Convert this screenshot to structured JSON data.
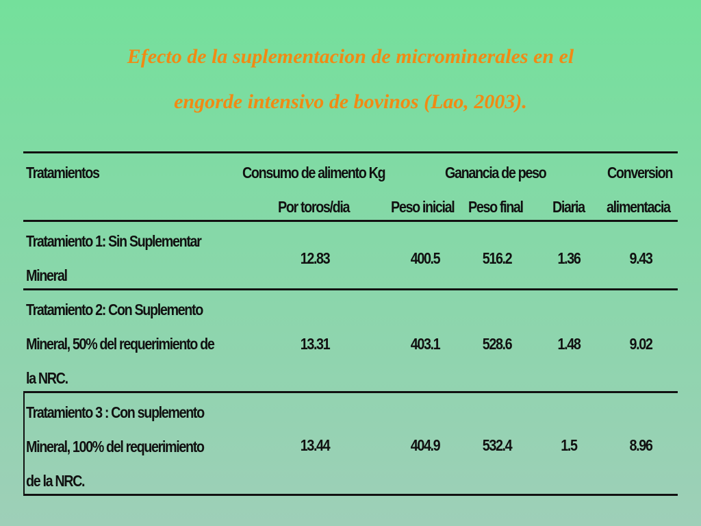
{
  "title": {
    "line1": "Efecto de la suplementacion de microminerales en el",
    "line2": "engorde intensivo de bovinos  (Lao, 2003)."
  },
  "table": {
    "headers": {
      "tratamientos": "Tratamientos",
      "consumo": "Consumo de alimento Kg",
      "ganancia": "Ganancia de peso",
      "conversion": "Conversion",
      "por_toros": "Por toros/dia",
      "peso_inicial": "Peso inicial",
      "peso_final": "Peso final",
      "diaria": "Diaria",
      "alimentacia": "alimentacia"
    },
    "rows": [
      {
        "label_lines": [
          "Tratamiento 1: Sin Suplementar",
          "Mineral"
        ],
        "consumo": "12.83",
        "peso_inicial": "400.5",
        "peso_final": "516.2",
        "diaria": "1.36",
        "conversion": "9.43"
      },
      {
        "label_lines": [
          "Tratamiento 2: Con Suplemento",
          "Mineral, 50% del requerimiento de",
          "la NRC."
        ],
        "consumo": "13.31",
        "peso_inicial": "403.1",
        "peso_final": "528.6",
        "diaria": "1.48",
        "conversion": "9.02"
      },
      {
        "label_lines": [
          "Tratamiento 3 : Con suplemento",
          "Mineral, 100% del requerimiento",
          "de la NRC."
        ],
        "consumo": "13.44",
        "peso_inicial": "404.9",
        "peso_final": "532.4",
        "diaria": "1.5",
        "conversion": "8.96"
      }
    ]
  }
}
